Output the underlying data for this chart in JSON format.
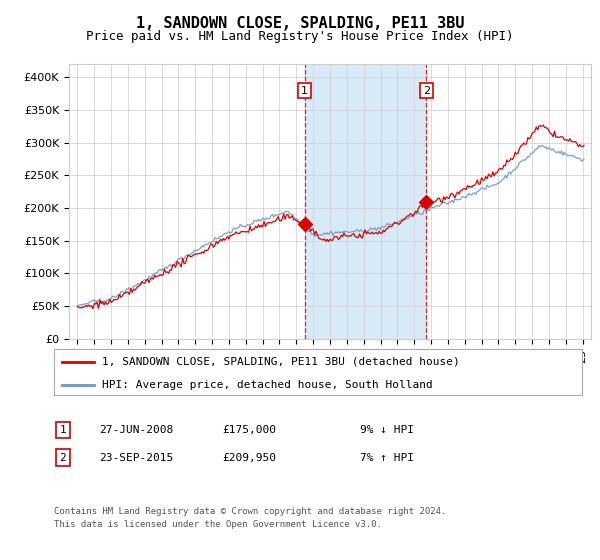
{
  "title": "1, SANDOWN CLOSE, SPALDING, PE11 3BU",
  "subtitle": "Price paid vs. HM Land Registry's House Price Index (HPI)",
  "ylabel_ticks": [
    "£0",
    "£50K",
    "£100K",
    "£150K",
    "£200K",
    "£250K",
    "£300K",
    "£350K",
    "£400K"
  ],
  "ytick_vals": [
    0,
    50000,
    100000,
    150000,
    200000,
    250000,
    300000,
    350000,
    400000
  ],
  "ylim": [
    0,
    420000
  ],
  "xlim_start": 1994.5,
  "xlim_end": 2025.5,
  "sale1_x": 2008.49,
  "sale1_y": 175000,
  "sale1_label": "1",
  "sale2_x": 2015.73,
  "sale2_y": 209950,
  "sale2_label": "2",
  "shade_x1": 2008.49,
  "shade_x2": 2015.73,
  "line1_color": "#dd0000",
  "line2_color": "#6699cc",
  "shade_color": "#d8eaf7",
  "grid_color": "#cccccc",
  "background_color": "#ffffff",
  "legend_line1": "1, SANDOWN CLOSE, SPALDING, PE11 3BU (detached house)",
  "legend_line2": "HPI: Average price, detached house, South Holland",
  "table_row1": [
    "1",
    "27-JUN-2008",
    "£175,000",
    "9% ↓ HPI"
  ],
  "table_row2": [
    "2",
    "23-SEP-2015",
    "£209,950",
    "7% ↑ HPI"
  ],
  "footer": "Contains HM Land Registry data © Crown copyright and database right 2024.\nThis data is licensed under the Open Government Licence v3.0.",
  "title_fontsize": 11,
  "subtitle_fontsize": 9,
  "tick_fontsize": 8
}
